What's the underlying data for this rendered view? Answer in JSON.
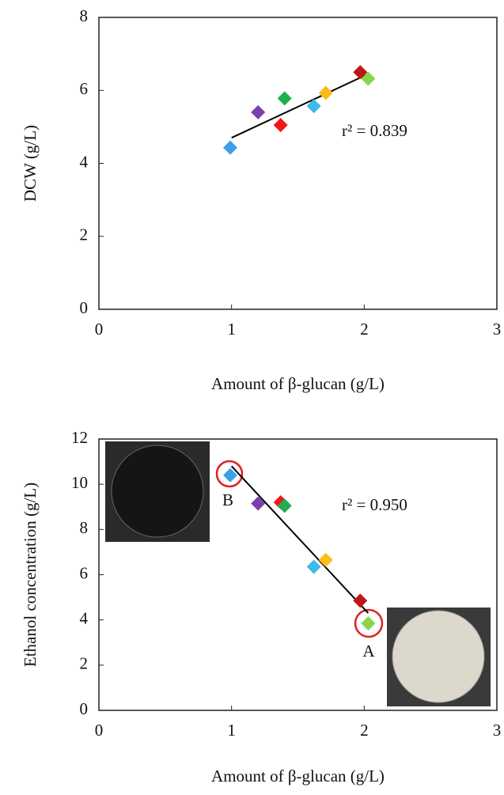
{
  "chart_data": [
    {
      "type": "scatter",
      "x": [
        0.99,
        1.2,
        1.37,
        1.4,
        1.62,
        1.71,
        1.97,
        2.03
      ],
      "values": [
        4.43,
        5.4,
        5.05,
        5.78,
        5.57,
        5.93,
        6.5,
        6.32
      ],
      "colors": [
        "#3aa0e8",
        "#7b3fb0",
        "#f01818",
        "#1fae50",
        "#3fb8ec",
        "#fbbc1a",
        "#c01616",
        "#8ad44a"
      ],
      "trendline": {
        "x": [
          1.0,
          2.03
        ],
        "y": [
          4.7,
          6.45
        ]
      },
      "xlim": [
        0,
        3
      ],
      "ylim": [
        0,
        8
      ],
      "xticks": [
        0,
        1,
        2,
        3
      ],
      "yticks": [
        0,
        2,
        4,
        6,
        8
      ],
      "xlabel": "Amount of β-glucan (g/L)",
      "ylabel": "DCW (g/L)",
      "annotations": [
        "r² = 0.839"
      ]
    },
    {
      "type": "scatter",
      "x": [
        0.99,
        1.2,
        1.37,
        1.4,
        1.62,
        1.71,
        1.97,
        2.03
      ],
      "values": [
        10.4,
        9.15,
        9.2,
        9.05,
        6.35,
        6.65,
        4.85,
        3.85
      ],
      "colors": [
        "#3aa0e8",
        "#7b3fb0",
        "#f01818",
        "#1fae50",
        "#3fb8ec",
        "#fbbc1a",
        "#c01616",
        "#8ad44a"
      ],
      "trendline": {
        "x": [
          1.0,
          2.03
        ],
        "y": [
          10.8,
          4.3
        ]
      },
      "xlim": [
        0,
        3
      ],
      "ylim": [
        0,
        12
      ],
      "xticks": [
        0,
        1,
        2,
        3
      ],
      "yticks": [
        0,
        2,
        4,
        6,
        8,
        10,
        12
      ],
      "xlabel": "Amount of β-glucan (g/L)",
      "ylabel": "Ethanol concentration (g/L)",
      "annotations": [
        "r² = 0.950",
        "B",
        "A"
      ]
    }
  ]
}
